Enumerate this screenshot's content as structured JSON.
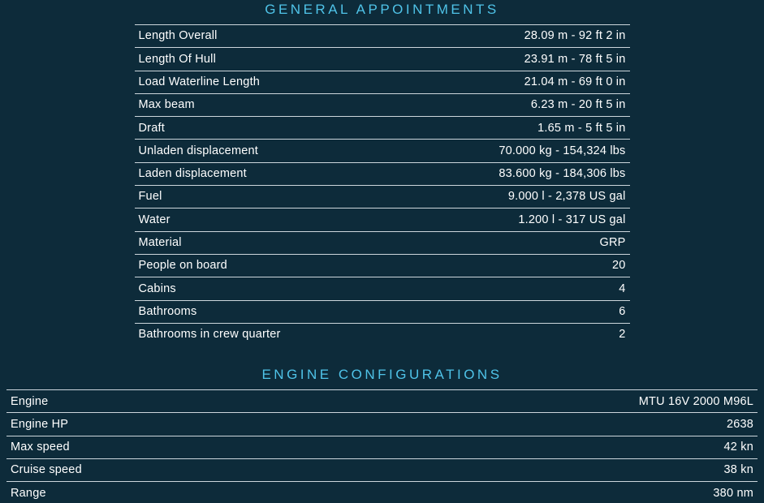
{
  "page": {
    "background_color": "#0d2b3a",
    "accent_color": "#4fc3e8",
    "text_color": "#ffffff",
    "divider_color": "#ccd6dc"
  },
  "sections": [
    {
      "title": "GENERAL APPOINTMENTS",
      "rows": [
        {
          "label": "Length Overall",
          "value": "28.09 m - 92 ft 2 in"
        },
        {
          "label": "Length Of Hull",
          "value": "23.91 m - 78 ft 5 in"
        },
        {
          "label": "Load Waterline Length",
          "value": "21.04 m - 69 ft 0 in"
        },
        {
          "label": "Max beam",
          "value": "6.23 m - 20 ft 5 in"
        },
        {
          "label": "Draft",
          "value": "1.65 m - 5 ft 5 in"
        },
        {
          "label": "Unladen displacement",
          "value": "70.000 kg - 154,324 lbs"
        },
        {
          "label": "Laden displacement",
          "value": "83.600 kg - 184,306 lbs"
        },
        {
          "label": "Fuel",
          "value": "9.000 l - 2,378 US gal"
        },
        {
          "label": "Water",
          "value": "1.200 l - 317 US gal"
        },
        {
          "label": "Material",
          "value": "GRP"
        },
        {
          "label": "People on board",
          "value": "20"
        },
        {
          "label": "Cabins",
          "value": "4"
        },
        {
          "label": "Bathrooms",
          "value": "6"
        },
        {
          "label": "Bathrooms in crew quarter",
          "value": "2"
        }
      ]
    },
    {
      "title": "ENGINE CONFIGURATIONS",
      "rows": [
        {
          "label": "Engine",
          "value": "MTU 16V 2000 M96L"
        },
        {
          "label": "Engine HP",
          "value": "2638"
        },
        {
          "label": "Max speed",
          "value": "42 kn"
        },
        {
          "label": "Cruise speed",
          "value": "38 kn"
        },
        {
          "label": "Range",
          "value": "380 nm"
        }
      ]
    }
  ]
}
